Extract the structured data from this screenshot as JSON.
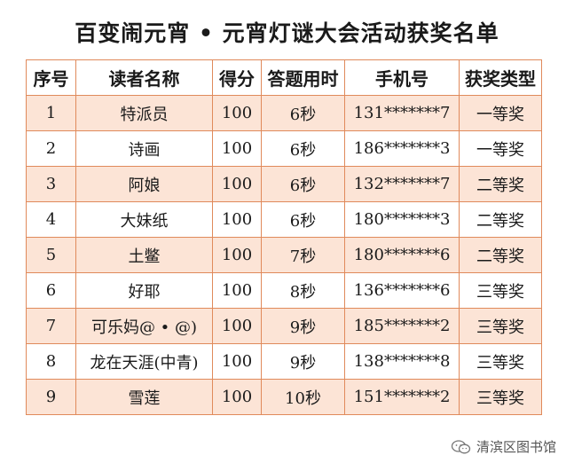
{
  "title": "百变闹元宵 • 元宵灯谜大会活动获奖名单",
  "table": {
    "headers": [
      "序号",
      "读者名称",
      "得分",
      "答题用时",
      "手机号",
      "获奖类型"
    ],
    "rows": [
      [
        "1",
        "特派员",
        "100",
        "6秒",
        "131*******7",
        "一等奖"
      ],
      [
        "2",
        "诗画",
        "100",
        "6秒",
        "186*******3",
        "一等奖"
      ],
      [
        "3",
        "阿娘",
        "100",
        "6秒",
        "132*******7",
        "二等奖"
      ],
      [
        "4",
        "大妹纸",
        "100",
        "6秒",
        "180*******3",
        "二等奖"
      ],
      [
        "5",
        "土鳖",
        "100",
        "7秒",
        "180*******6",
        "二等奖"
      ],
      [
        "6",
        "好耶",
        "100",
        "8秒",
        "136*******6",
        "三等奖"
      ],
      [
        "7",
        "可乐妈@ • @)",
        "100",
        "9秒",
        "185*******2",
        "三等奖"
      ],
      [
        "8",
        "龙在天涯(中青)",
        "100",
        "9秒",
        "138*******8",
        "三等奖"
      ],
      [
        "9",
        "雪莲",
        "100",
        "10秒",
        "151*******2",
        "三等奖"
      ]
    ]
  },
  "footer": {
    "icon": "wechat-icon",
    "text": "清滨区图书馆"
  }
}
